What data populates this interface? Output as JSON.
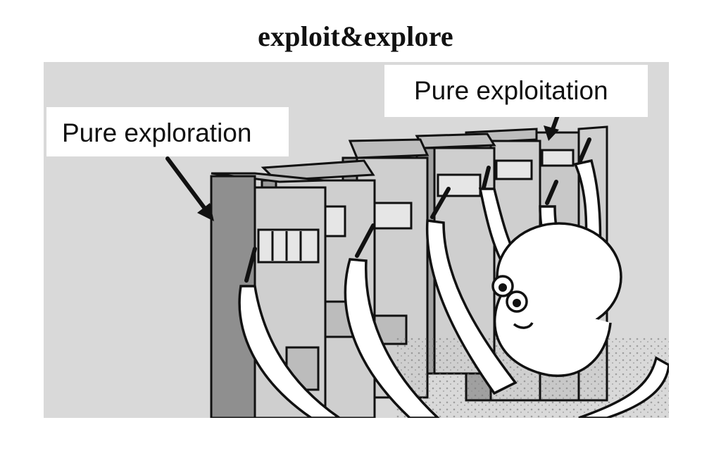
{
  "title": "exploit&explore",
  "labels": {
    "exploration": "Pure exploration",
    "exploitation": "Pure exploitation"
  },
  "colors": {
    "background": "#ffffff",
    "panel": "#d9d9d9",
    "machine_light": "#cfcfcf",
    "machine_dark": "#8f8f8f",
    "outline": "#111111"
  },
  "illustration": {
    "subject": "octopus-pulling-slot-machine-levers",
    "machines": 6
  }
}
